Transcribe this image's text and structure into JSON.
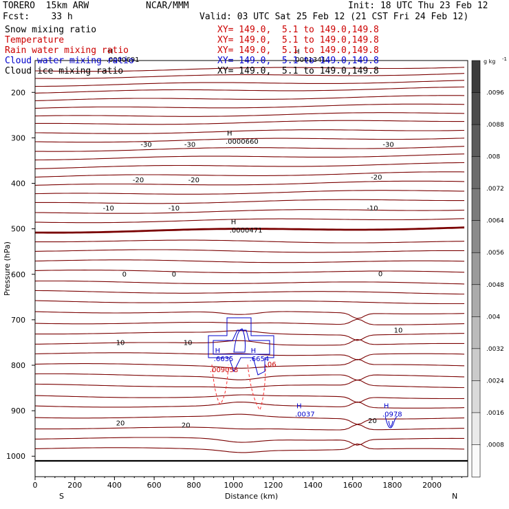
{
  "header": {
    "model": "TORERO  15km ARW",
    "center": "NCAR/MMM",
    "init": "Init: 18 UTC Thu 23 Feb 12",
    "fcst": "Fcst:    33 h",
    "valid": "Valid: 03 UTC Sat 25 Feb 12 (21 CST Fri 24 Feb 12)"
  },
  "fields": [
    {
      "name": "Snow mixing ratio",
      "range": "XY= 149.0,  5.1 to 149.0,149.8",
      "color": "#000000"
    },
    {
      "name": "Temperature",
      "range": "XY= 149.0,  5.1 to 149.0,149.8",
      "color": "#cc0000"
    },
    {
      "name": "Rain water mixing ratio",
      "range": "XY= 149.0,  5.1 to 149.0,149.8",
      "color": "#cc0000"
    },
    {
      "name": "Cloud water mixing ratio",
      "range": "XY= 149.0,  5.1 to 149.0,149.8",
      "color": "#0000cc"
    },
    {
      "name": "Cloud ice mixing ratio",
      "range": "XY= 149.0,  5.1 to 149.0,149.8",
      "color": "#000000"
    }
  ],
  "chart_data": {
    "type": "cross-section",
    "xlabel": "Distance (km)",
    "ylabel": "Pressure (hPa)",
    "xlim": [
      0,
      2180
    ],
    "ylim": [
      1045,
      130
    ],
    "xticks": [
      0,
      200,
      400,
      600,
      800,
      1000,
      1200,
      1400,
      1600,
      1800,
      2000
    ],
    "yticks": [
      200,
      300,
      400,
      500,
      600,
      700,
      800,
      900,
      1000
    ],
    "orientation_left": "S",
    "orientation_right": "N",
    "colorbar": {
      "unit": "g kg",
      "exponent": "-1",
      "ticks": [
        ".0096",
        ".0088",
        ".008",
        ".0072",
        ".0064",
        ".0056",
        ".0048",
        ".004",
        ".0032",
        ".0024",
        ".0016",
        ".0008"
      ]
    },
    "temperature_labels": [
      {
        "text": "-30",
        "x": 560,
        "p": 320
      },
      {
        "text": "-30",
        "x": 780,
        "p": 320
      },
      {
        "text": "-30",
        "x": 1780,
        "p": 320
      },
      {
        "text": "-20",
        "x": 520,
        "p": 398
      },
      {
        "text": "-20",
        "x": 800,
        "p": 398
      },
      {
        "text": "-20",
        "x": 1720,
        "p": 392
      },
      {
        "text": "-10",
        "x": 370,
        "p": 460
      },
      {
        "text": "-10",
        "x": 700,
        "p": 460
      },
      {
        "text": "-10",
        "x": 1700,
        "p": 460
      },
      {
        "text": "0",
        "x": 450,
        "p": 605
      },
      {
        "text": "0",
        "x": 700,
        "p": 605
      },
      {
        "text": "0",
        "x": 1740,
        "p": 604
      },
      {
        "text": "10",
        "x": 430,
        "p": 755
      },
      {
        "text": "10",
        "x": 770,
        "p": 755
      },
      {
        "text": "10",
        "x": 1830,
        "p": 728
      },
      {
        "text": "20",
        "x": 430,
        "p": 932
      },
      {
        "text": "20",
        "x": 760,
        "p": 937
      },
      {
        "text": "20",
        "x": 1700,
        "p": 927
      }
    ],
    "maxima": [
      {
        "mark": "H",
        "value": ".0000691",
        "x": 360,
        "p": 130,
        "color": "#000000"
      },
      {
        "mark": "H",
        "value": ".0001341",
        "x": 1300,
        "p": 130,
        "color": "#000000"
      },
      {
        "mark": "H",
        "value": ".0000660",
        "x": 960,
        "p": 310,
        "color": "#000000"
      },
      {
        "mark": "H",
        "value": ".0000471",
        "x": 980,
        "p": 505,
        "color": "#000000"
      },
      {
        "mark": "H",
        "value": ".6635",
        "x": 900,
        "p": 788,
        "color": "#0000cc"
      },
      {
        "mark": "H",
        "value": ".6654",
        "x": 1080,
        "p": 788,
        "color": "#0000cc"
      },
      {
        "mark": "",
        "value": ".009058",
        "x": 880,
        "p": 812,
        "color": "#cc0000"
      },
      {
        "mark": "",
        "value": ".06",
        "x": 1160,
        "p": 800,
        "color": "#cc0000"
      },
      {
        "mark": "H",
        "value": ".0037",
        "x": 1310,
        "p": 910,
        "color": "#0000cc"
      },
      {
        "mark": "H",
        "value": ".0978",
        "x": 1750,
        "p": 910,
        "color": "#0000cc"
      }
    ]
  }
}
